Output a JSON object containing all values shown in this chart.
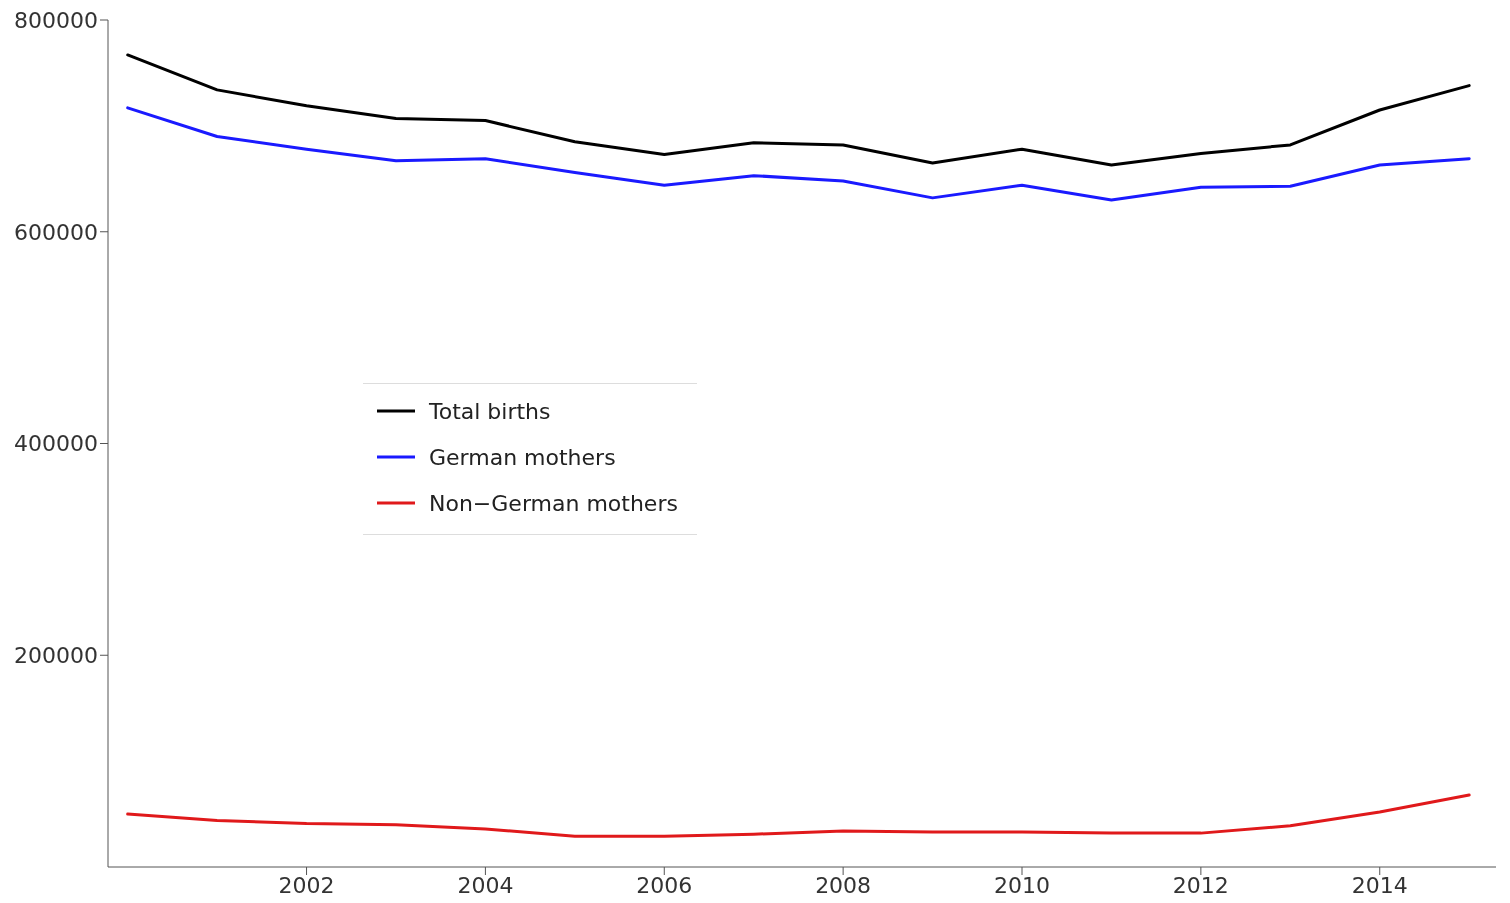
{
  "chart_data": {
    "type": "line",
    "x": [
      2000,
      2001,
      2002,
      2003,
      2004,
      2005,
      2006,
      2007,
      2008,
      2009,
      2010,
      2011,
      2012,
      2013,
      2014,
      2015
    ],
    "series": [
      {
        "name": "Total births",
        "color": "#000000",
        "values": [
          767000,
          734000,
          719000,
          707000,
          705000,
          685000,
          673000,
          684000,
          682000,
          665000,
          678000,
          663000,
          674000,
          682000,
          715000,
          738000
        ]
      },
      {
        "name": "German mothers",
        "color": "#1a1aff",
        "values": [
          717000,
          690000,
          678000,
          667000,
          669000,
          656000,
          644000,
          653000,
          648000,
          632000,
          644000,
          630000,
          642000,
          643000,
          663000,
          669000
        ]
      },
      {
        "name": "Non−German mothers",
        "color": "#e0191b",
        "values": [
          50000,
          44000,
          41000,
          40000,
          36000,
          29000,
          29000,
          31000,
          34000,
          33000,
          33000,
          32000,
          32000,
          39000,
          52000,
          68000
        ]
      }
    ],
    "xlim": [
      1999.78,
      2015.3
    ],
    "xticks": [
      2002,
      2004,
      2006,
      2008,
      2010,
      2012,
      2014
    ],
    "ylim": [
      0,
      800000
    ],
    "yticks": [
      200000,
      400000,
      600000,
      800000
    ],
    "grid": false,
    "legend": "left",
    "marker": "none",
    "line_style": "solid"
  }
}
